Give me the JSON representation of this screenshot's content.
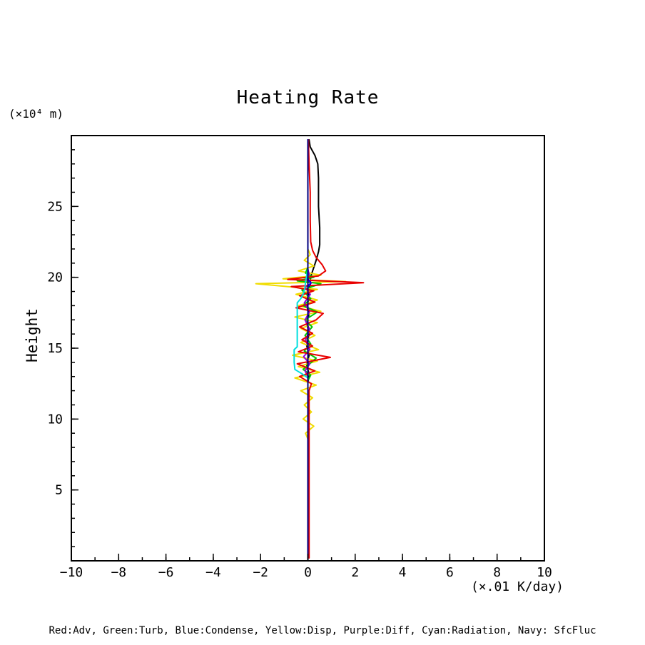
{
  "chart_data": {
    "type": "line",
    "title": "Heating Rate",
    "ylabel": "Height",
    "y_unit_label": "(×10⁴ m)",
    "x_unit_label": "(×.01 K/day)",
    "xlim": [
      -10,
      10
    ],
    "ylim": [
      0,
      30
    ],
    "grid": false,
    "legend_position": "bottom-caption",
    "legend_text": "Red:Adv, Green:Turb, Blue:Condense, Yellow:Disp, Purple:Diff, Cyan:Radiation, Navy: SfcFluc",
    "x_ticks": {
      "values": [
        -10,
        -8,
        -6,
        -4,
        -2,
        0,
        2,
        4,
        6,
        8,
        10
      ],
      "labels": [
        "−10",
        "−8",
        "−6",
        "−4",
        "−2",
        "0",
        "2",
        "4",
        "6",
        "8",
        "10"
      ]
    },
    "x_minor_step": 1,
    "y_ticks": {
      "values": [
        5,
        10,
        15,
        20,
        25
      ],
      "labels": [
        "5",
        "10",
        "15",
        "20",
        "25"
      ]
    },
    "y_minor_step": 1,
    "series": [
      {
        "name": "unlabeled-black",
        "color": "#000000",
        "points": [
          [
            0.05,
            29.7
          ],
          [
            0.1,
            29.2
          ],
          [
            0.3,
            28.6
          ],
          [
            0.42,
            28.0
          ],
          [
            0.45,
            27.0
          ],
          [
            0.45,
            25.0
          ],
          [
            0.5,
            23.5
          ],
          [
            0.5,
            22.3
          ],
          [
            0.45,
            21.8
          ],
          [
            0.35,
            21.2
          ],
          [
            0.25,
            20.7
          ],
          [
            0.15,
            20.2
          ],
          [
            0.1,
            19.8
          ],
          [
            0.12,
            19.6
          ],
          [
            0.05,
            19.2
          ],
          [
            0.05,
            18.5
          ],
          [
            -0.05,
            18.0
          ],
          [
            0.05,
            17.4
          ],
          [
            -0.05,
            16.8
          ],
          [
            0.05,
            16.0
          ],
          [
            -0.05,
            15.2
          ],
          [
            0.05,
            14.5
          ],
          [
            -0.05,
            13.8
          ],
          [
            0.05,
            13.2
          ],
          [
            0,
            12.5
          ],
          [
            0,
            0.2
          ]
        ]
      },
      {
        "name": "Disp",
        "color": "#f0dc00",
        "points": [
          [
            0,
            0.2
          ],
          [
            0,
            8.6
          ],
          [
            -0.1,
            9.0
          ],
          [
            0.25,
            9.5
          ],
          [
            -0.2,
            10.0
          ],
          [
            0.15,
            10.5
          ],
          [
            -0.15,
            11.0
          ],
          [
            0.2,
            11.5
          ],
          [
            -0.3,
            12.0
          ],
          [
            0.35,
            12.4
          ],
          [
            -0.55,
            12.9
          ],
          [
            0.5,
            13.3
          ],
          [
            -0.4,
            13.7
          ],
          [
            0.4,
            14.1
          ],
          [
            -0.65,
            14.5
          ],
          [
            0.45,
            14.9
          ],
          [
            -0.3,
            15.4
          ],
          [
            0.3,
            15.9
          ],
          [
            -0.3,
            16.4
          ],
          [
            0.4,
            16.8
          ],
          [
            -0.55,
            17.2
          ],
          [
            0.55,
            17.6
          ],
          [
            -0.4,
            18.0
          ],
          [
            0.4,
            18.4
          ],
          [
            -0.5,
            18.8
          ],
          [
            0.4,
            19.15
          ],
          [
            -2.2,
            19.55
          ],
          [
            1.6,
            19.7
          ],
          [
            -1.05,
            19.9
          ],
          [
            0.55,
            20.15
          ],
          [
            -0.4,
            20.45
          ],
          [
            0.25,
            20.8
          ],
          [
            -0.15,
            21.2
          ],
          [
            0.1,
            21.6
          ],
          [
            0,
            22.0
          ],
          [
            0,
            29.7
          ]
        ]
      },
      {
        "name": "Turb",
        "color": "#00c800",
        "points": [
          [
            0,
            0.2
          ],
          [
            0,
            12.7
          ],
          [
            0.12,
            13.1
          ],
          [
            -0.2,
            13.5
          ],
          [
            0.35,
            14.3
          ],
          [
            -0.15,
            14.8
          ],
          [
            0.12,
            15.3
          ],
          [
            -0.12,
            15.9
          ],
          [
            0.18,
            16.5
          ],
          [
            -0.12,
            17.0
          ],
          [
            0.4,
            17.55
          ],
          [
            -0.2,
            18.0
          ],
          [
            0.12,
            18.5
          ],
          [
            -0.25,
            19.1
          ],
          [
            0.55,
            19.55
          ],
          [
            -0.45,
            19.75
          ],
          [
            0.25,
            20.0
          ],
          [
            -0.1,
            20.3
          ],
          [
            0,
            20.7
          ],
          [
            0,
            29.7
          ]
        ]
      },
      {
        "name": "Diff",
        "color": "#9400d3",
        "points": [
          [
            0,
            0.2
          ],
          [
            0,
            13.0
          ],
          [
            -0.12,
            13.4
          ],
          [
            0.08,
            13.9
          ],
          [
            -0.18,
            14.4
          ],
          [
            0.08,
            14.9
          ],
          [
            -0.1,
            15.6
          ],
          [
            0.08,
            16.3
          ],
          [
            -0.12,
            17.0
          ],
          [
            0.08,
            17.6
          ],
          [
            -0.15,
            18.2
          ],
          [
            0.1,
            18.8
          ],
          [
            -0.12,
            19.3
          ],
          [
            0.15,
            19.6
          ],
          [
            -0.08,
            19.9
          ],
          [
            0.05,
            20.2
          ],
          [
            0,
            20.6
          ],
          [
            0,
            29.7
          ]
        ]
      },
      {
        "name": "Adv",
        "color": "#e80000",
        "points": [
          [
            0.05,
            0.2
          ],
          [
            0.05,
            12.0
          ],
          [
            0.15,
            12.5
          ],
          [
            -0.35,
            13.0
          ],
          [
            0.3,
            13.4
          ],
          [
            -0.45,
            13.9
          ],
          [
            0.95,
            14.35
          ],
          [
            -0.4,
            14.75
          ],
          [
            0.2,
            15.15
          ],
          [
            -0.25,
            15.6
          ],
          [
            0.2,
            16.05
          ],
          [
            -0.35,
            16.5
          ],
          [
            0.35,
            17.0
          ],
          [
            0.65,
            17.45
          ],
          [
            -0.5,
            17.85
          ],
          [
            0.3,
            18.25
          ],
          [
            -0.35,
            18.7
          ],
          [
            0.25,
            19.05
          ],
          [
            -0.7,
            19.35
          ],
          [
            2.35,
            19.62
          ],
          [
            -0.85,
            19.85
          ],
          [
            0.45,
            20.1
          ],
          [
            0.75,
            20.45
          ],
          [
            0.6,
            20.9
          ],
          [
            0.35,
            21.4
          ],
          [
            0.2,
            21.9
          ],
          [
            0.12,
            22.5
          ],
          [
            0.1,
            24.0
          ],
          [
            0.1,
            26.0
          ],
          [
            0.05,
            28.0
          ],
          [
            0.02,
            29.7
          ]
        ]
      },
      {
        "name": "Radiation",
        "color": "#00dede",
        "points": [
          [
            0,
            0.2
          ],
          [
            0,
            12.9
          ],
          [
            -0.25,
            13.2
          ],
          [
            -0.55,
            13.5
          ],
          [
            -0.58,
            14.0
          ],
          [
            -0.58,
            14.9
          ],
          [
            -0.45,
            15.1
          ],
          [
            -0.45,
            18.2
          ],
          [
            -0.3,
            18.5
          ],
          [
            -0.18,
            18.9
          ],
          [
            -0.12,
            19.3
          ],
          [
            -0.1,
            19.7
          ],
          [
            -0.05,
            20.1
          ],
          [
            0,
            20.6
          ],
          [
            0,
            29.7
          ]
        ]
      },
      {
        "name": "Condense",
        "color": "#0000ff",
        "points": [
          [
            0,
            0.2
          ],
          [
            0,
            19.3
          ],
          [
            0.12,
            19.6
          ],
          [
            0,
            19.9
          ],
          [
            0,
            29.7
          ]
        ]
      },
      {
        "name": "SfcFluc",
        "color": "#000080",
        "points": [
          [
            0,
            0.05
          ],
          [
            0,
            29.7
          ]
        ]
      }
    ]
  }
}
